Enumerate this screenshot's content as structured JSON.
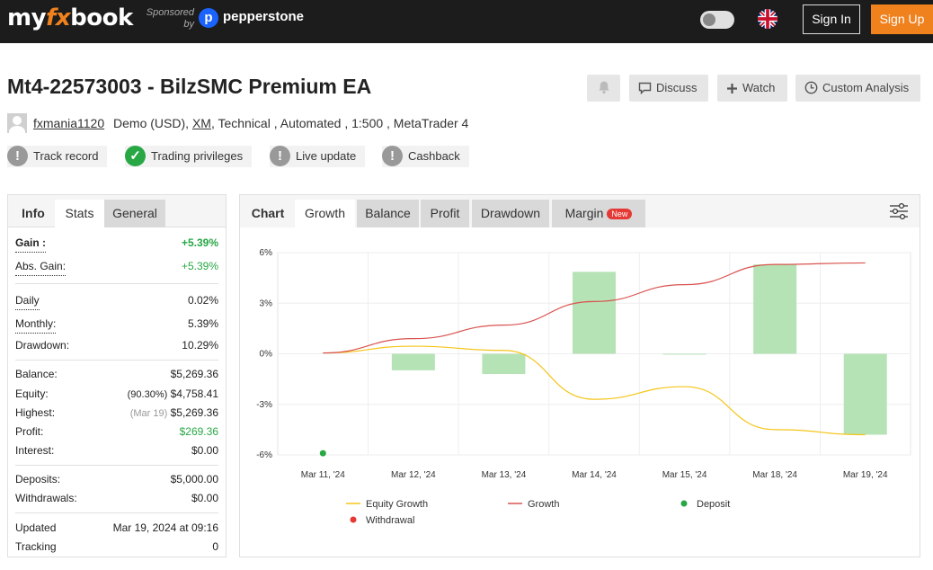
{
  "nav": {
    "logo_a": "my",
    "logo_b": "fx",
    "logo_c": "book",
    "sponsored_line1": "Sponsored",
    "sponsored_line2": "by",
    "sponsor_mark": "p",
    "sponsor_name": "pepperstone",
    "signin": "Sign In",
    "signup": "Sign Up"
  },
  "header": {
    "title": "Mt4-22573003 - BilzSMC Premium EA",
    "discuss": "Discuss",
    "watch": "Watch",
    "custom_analysis": "Custom Analysis",
    "owner": "fxmania1120",
    "account_type": "Demo (USD),",
    "broker": "XM",
    "details": ", Technical , Automated , 1:500 , MetaTrader 4"
  },
  "badges": [
    "Track record",
    "Trading privileges",
    "Live update",
    "Cashback"
  ],
  "info_panel": {
    "tabs": [
      "Info",
      "Stats",
      "General"
    ],
    "rows": {
      "gain": {
        "label": "Gain :",
        "value": "+5.39%"
      },
      "abs_gain": {
        "label": "Abs. Gain:",
        "value": "+5.39%"
      },
      "daily": {
        "label": "Daily",
        "value": "0.02%"
      },
      "monthly": {
        "label": "Monthly:",
        "value": "5.39%"
      },
      "drawdown": {
        "label": "Drawdown:",
        "value": "10.29%"
      },
      "balance": {
        "label": "Balance:",
        "value": "$5,269.36"
      },
      "equity": {
        "label": "Equity:",
        "note": "(90.30%)",
        "value": "$4,758.41"
      },
      "highest": {
        "label": "Highest:",
        "note": "(Mar 19)",
        "value": "$5,269.36"
      },
      "profit": {
        "label": "Profit:",
        "value": "$269.36"
      },
      "interest": {
        "label": "Interest:",
        "value": "$0.00"
      },
      "deposits": {
        "label": "Deposits:",
        "value": "$5,000.00"
      },
      "withdrawals": {
        "label": "Withdrawals:",
        "value": "$0.00"
      },
      "updated": {
        "label": "Updated",
        "value": "Mar 19, 2024 at 09:16"
      },
      "tracking": {
        "label": "Tracking",
        "value": "0"
      }
    }
  },
  "chart_panel": {
    "tabs": [
      "Chart",
      "Growth",
      "Balance",
      "Profit",
      "Drawdown",
      "Margin"
    ],
    "new_badge": "New"
  },
  "chart_data": {
    "type": "bar",
    "categories": [
      "Mar 11, '24",
      "Mar 12, '24",
      "Mar 13, '24",
      "Mar 14, '24",
      "Mar 15, '24",
      "Mar 18, '24",
      "Mar 19, '24"
    ],
    "yticks": [
      "6%",
      "3%",
      "0%",
      "-3%",
      "-6%"
    ],
    "ylim": [
      -6,
      6
    ],
    "bars": [
      null,
      -0.98,
      -1.2,
      4.86,
      -0.05,
      5.3,
      -4.8
    ],
    "series": [
      {
        "name": "Equity Growth",
        "type": "line",
        "color": "#f5c518",
        "values": [
          0.05,
          0.45,
          0.2,
          -2.7,
          -1.95,
          -4.5,
          -4.8
        ]
      },
      {
        "name": "Growth",
        "type": "line",
        "color": "#d9534f",
        "values": [
          0.05,
          0.9,
          1.7,
          3.1,
          4.1,
          5.3,
          5.39
        ]
      },
      {
        "name": "Deposit",
        "type": "scatter",
        "color": "#28a745",
        "values": [
          -5.9,
          null,
          null,
          null,
          null,
          null,
          null
        ]
      },
      {
        "name": "Withdrawal",
        "type": "scatter",
        "color": "#e53935",
        "values": [
          null,
          null,
          null,
          null,
          null,
          null,
          null
        ]
      }
    ],
    "bar_color": "#b5e3b5",
    "grid": true,
    "legend_position": "bottom"
  }
}
